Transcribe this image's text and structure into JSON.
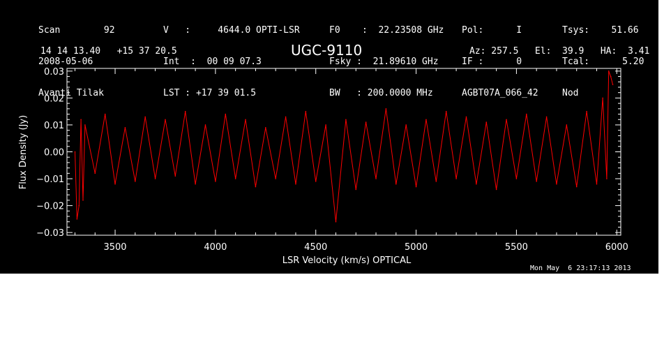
{
  "header": {
    "col1": [
      "Scan        92",
      "2008-05-06",
      "Avanti Tilak"
    ],
    "col2": [
      "V   :     4644.0 OPTI-LSR",
      "Int  :  00 09 07.3",
      "LST : +17 39 01.5"
    ],
    "col3": [
      "F0    :  22.23508 GHz",
      "Fsky :  21.89610 GHz",
      "BW   : 200.0000 MHz"
    ],
    "col4": [
      "Pol:      I",
      "IF :      0",
      "AGBT07A_066_42"
    ],
    "col5": [
      "Tsys:    51.66",
      "Tcal:      5.20",
      "Nod"
    ],
    "coords": "14 14 13.40   +15 37 20.5",
    "source": "UGC-9110",
    "azel": "Az: 257.5   El:  39.9   HA:  3.41",
    "timestamp": "Mon May  6 23:17:13 2013"
  },
  "colors": {
    "background": "#000000",
    "axes": "#ffffff",
    "trace": "#ff0000"
  },
  "chart_data": {
    "type": "line",
    "title": "UGC-9110",
    "xlabel": "LSR Velocity (km/s) OPTICAL",
    "ylabel": "Flux Density (Jy)",
    "xlim": [
      3260,
      6020
    ],
    "ylim": [
      -0.031,
      0.031
    ],
    "x_ticks": [
      3500,
      4000,
      4500,
      5000,
      5500,
      6000
    ],
    "x_tick_labels": [
      "3500",
      "4000",
      "4500",
      "5000",
      "5500",
      "6000"
    ],
    "y_ticks": [
      -0.03,
      -0.02,
      -0.01,
      0.0,
      0.01,
      0.02,
      0.03
    ],
    "y_tick_labels": [
      "−0.03",
      "−0.02",
      "−0.01",
      "0.00",
      "0.01",
      "0.02",
      "0.03"
    ],
    "series": [
      {
        "color": "#ff0000",
        "x": [
          3300,
          3310,
          3320,
          3330,
          3340,
          3350,
          3400,
          3450,
          3500,
          3550,
          3600,
          3650,
          3700,
          3750,
          3800,
          3850,
          3900,
          3950,
          4000,
          4050,
          4100,
          4150,
          4200,
          4250,
          4300,
          4350,
          4400,
          4450,
          4500,
          4550,
          4600,
          4650,
          4700,
          4750,
          4800,
          4850,
          4900,
          4950,
          5000,
          5050,
          5100,
          5150,
          5200,
          5250,
          5300,
          5350,
          5400,
          5450,
          5500,
          5550,
          5600,
          5650,
          5700,
          5750,
          5800,
          5850,
          5900,
          5930,
          5950,
          5960,
          5970,
          5980
        ],
        "y": [
          0.0,
          -0.025,
          -0.02,
          0.012,
          -0.018,
          0.01,
          -0.008,
          0.014,
          -0.012,
          0.009,
          -0.011,
          0.013,
          -0.01,
          0.012,
          -0.009,
          0.015,
          -0.012,
          0.01,
          -0.011,
          0.014,
          -0.01,
          0.012,
          -0.013,
          0.009,
          -0.01,
          0.013,
          -0.012,
          0.015,
          -0.011,
          0.01,
          -0.026,
          0.012,
          -0.014,
          0.011,
          -0.01,
          0.016,
          -0.012,
          0.01,
          -0.013,
          0.012,
          -0.011,
          0.015,
          -0.01,
          0.013,
          -0.012,
          0.011,
          -0.014,
          0.012,
          -0.01,
          0.014,
          -0.011,
          0.013,
          -0.012,
          0.01,
          -0.013,
          0.015,
          -0.012,
          0.02,
          -0.01,
          0.03,
          0.028,
          0.025
        ]
      }
    ]
  }
}
